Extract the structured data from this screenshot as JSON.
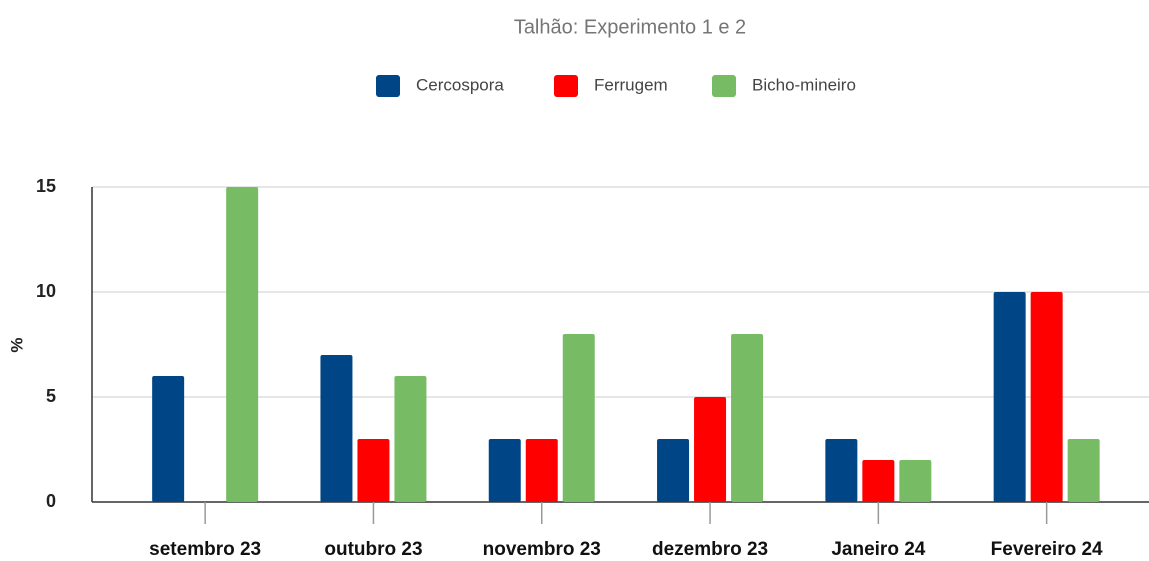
{
  "chart_data": {
    "type": "bar",
    "title": "Talhão: Experimento 1 e 2",
    "y_label": "%",
    "categories": [
      "setembro 23",
      "outubro 23",
      "novembro 23",
      "dezembro 23",
      "Janeiro 24",
      "Fevereiro 24"
    ],
    "series": [
      {
        "name": "Cercospora",
        "color": "#004586",
        "values": [
          6,
          7,
          3,
          3,
          3,
          10
        ]
      },
      {
        "name": "Ferrugem",
        "color": "#ff0000",
        "values": [
          0,
          3,
          3,
          5,
          2,
          10
        ]
      },
      {
        "name": "Bicho-mineiro",
        "color": "#77bc65",
        "values": [
          15,
          6,
          8,
          8,
          2,
          3
        ]
      }
    ],
    "ylim": [
      0,
      15
    ],
    "yticks": [
      0,
      5,
      10,
      15
    ],
    "grid": true
  }
}
